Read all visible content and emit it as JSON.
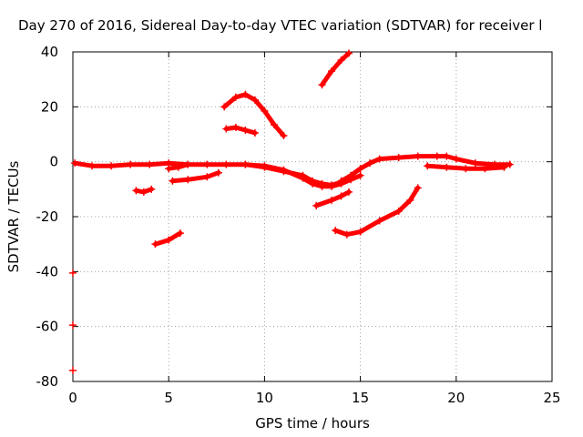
{
  "chart_data": {
    "type": "scatter",
    "title": "Day 270 of 2016, Sidereal Day-to-day VTEC variation (SDTVAR) for receiver l",
    "xlabel": "GPS time / hours",
    "ylabel": "SDTVAR / TECUs",
    "xlim": [
      0,
      25
    ],
    "ylim": [
      -80,
      40
    ],
    "x_ticks": [
      "0",
      "5",
      "10",
      "15",
      "20",
      "25"
    ],
    "y_ticks": [
      "40",
      "20",
      "0",
      "-20",
      "-40",
      "-60",
      "-80"
    ],
    "grid": true,
    "legend": "none",
    "color": "#ff0000",
    "series": [
      {
        "points": [
          [
            0.1,
            -0.5
          ],
          [
            1.0,
            -1.5
          ],
          [
            2.0,
            -1.5
          ],
          [
            3.0,
            -1.0
          ],
          [
            4.0,
            -1.0
          ],
          [
            5.0,
            -0.5
          ],
          [
            6.0,
            -1.0
          ],
          [
            7.0,
            -1.0
          ],
          [
            8.0,
            -1.0
          ],
          [
            9.0,
            -1.0
          ],
          [
            10.0,
            -1.5
          ],
          [
            11.0,
            -3.0
          ],
          [
            12.0,
            -6.0
          ],
          [
            12.5,
            -8.0
          ],
          [
            13.0,
            -9.0
          ],
          [
            13.5,
            -9.0
          ],
          [
            14.0,
            -8.0
          ],
          [
            14.5,
            -6.5
          ],
          [
            15.0,
            -5.0
          ]
        ]
      },
      {
        "points": [
          [
            14.0,
            -7.0
          ],
          [
            14.5,
            -5.0
          ],
          [
            15.0,
            -2.5
          ],
          [
            15.5,
            -0.5
          ],
          [
            16.0,
            1.0
          ],
          [
            17.0,
            1.5
          ],
          [
            18.0,
            2.0
          ],
          [
            19.0,
            2.0
          ],
          [
            19.5,
            2.0
          ],
          [
            20.0,
            1.0
          ],
          [
            21.0,
            -0.5
          ],
          [
            22.0,
            -1.0
          ],
          [
            22.8,
            -1.0
          ]
        ]
      },
      {
        "points": [
          [
            9.0,
            -1.0
          ],
          [
            10.0,
            -2.0
          ],
          [
            11.0,
            -3.5
          ],
          [
            12.0,
            -5.0
          ],
          [
            12.5,
            -7.0
          ],
          [
            13.0,
            -8.0
          ],
          [
            13.5,
            -8.5
          ],
          [
            14.0,
            -7.5
          ]
        ]
      },
      {
        "points": [
          [
            18.5,
            -1.5
          ],
          [
            19.5,
            -2.0
          ],
          [
            20.5,
            -2.5
          ],
          [
            21.5,
            -2.5
          ],
          [
            22.5,
            -2.0
          ]
        ]
      },
      {
        "points": [
          [
            5.0,
            -2.5
          ],
          [
            5.5,
            -2.0
          ],
          [
            6.0,
            -1.0
          ]
        ]
      },
      {
        "points": [
          [
            3.3,
            -10.5
          ],
          [
            3.7,
            -11.0
          ],
          [
            4.1,
            -10.0
          ]
        ]
      },
      {
        "points": [
          [
            5.2,
            -7.0
          ],
          [
            6.0,
            -6.5
          ],
          [
            7.0,
            -5.5
          ],
          [
            7.6,
            -4.0
          ]
        ]
      },
      {
        "points": [
          [
            4.3,
            -30.0
          ],
          [
            5.0,
            -28.5
          ],
          [
            5.6,
            -26.0
          ]
        ]
      },
      {
        "points": [
          [
            12.7,
            -16.0
          ],
          [
            13.5,
            -14.0
          ],
          [
            14.0,
            -12.5
          ],
          [
            14.4,
            -11.0
          ]
        ]
      },
      {
        "points": [
          [
            13.7,
            -25.0
          ],
          [
            14.3,
            -26.5
          ],
          [
            15.0,
            -25.5
          ],
          [
            16.0,
            -21.5
          ],
          [
            17.0,
            -18.0
          ],
          [
            17.6,
            -14.0
          ],
          [
            18.0,
            -9.5
          ]
        ]
      },
      {
        "points": [
          [
            7.9,
            20.0
          ],
          [
            8.5,
            23.5
          ],
          [
            9.0,
            24.5
          ],
          [
            9.5,
            22.5
          ],
          [
            10.0,
            18.5
          ],
          [
            10.5,
            13.5
          ],
          [
            11.0,
            9.5
          ]
        ]
      },
      {
        "points": [
          [
            8.0,
            12.0
          ],
          [
            8.5,
            12.5
          ],
          [
            9.0,
            11.5
          ],
          [
            9.5,
            10.5
          ]
        ]
      },
      {
        "points": [
          [
            13.0,
            28.0
          ],
          [
            13.5,
            33.0
          ],
          [
            14.0,
            37.0
          ],
          [
            14.4,
            39.5
          ]
        ]
      },
      {
        "points": [
          [
            0.0,
            -40.5
          ],
          [
            0.0,
            -59.5
          ],
          [
            0.0,
            -76.0
          ]
        ]
      }
    ]
  }
}
